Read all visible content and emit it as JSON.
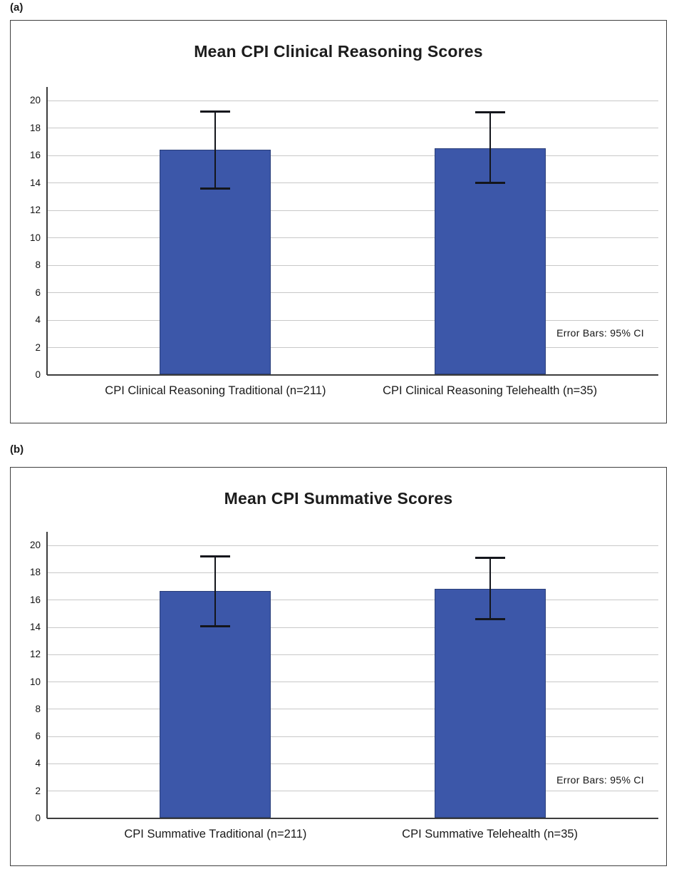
{
  "chart_data": [
    {
      "type": "bar",
      "panel_label": "(a)",
      "title": "Mean CPI Clinical Reasoning Scores",
      "annotation": "Error Bars: 95% CI",
      "categories": [
        "CPI Clinical Reasoning Traditional (n=211)",
        "CPI Clinical Reasoning Telehealth (n=35)"
      ],
      "values": [
        16.4,
        16.55
      ],
      "ci_low": [
        13.6,
        14.0
      ],
      "ci_high": [
        19.2,
        19.15
      ],
      "xlabel": "",
      "ylabel": "",
      "ylim": [
        0,
        21
      ],
      "yticks": [
        0,
        2,
        4,
        6,
        8,
        10,
        12,
        14,
        16,
        18,
        20
      ],
      "grid": true,
      "legend": "none",
      "bar_color": "#3c57a9",
      "bar_border_color": "#2a3f79"
    },
    {
      "type": "bar",
      "panel_label": "(b)",
      "title": "Mean CPI Summative Scores",
      "annotation": "Error Bars: 95% CI",
      "categories": [
        "CPI Summative Traditional (n=211)",
        "CPI Summative Telehealth (n=35)"
      ],
      "values": [
        16.65,
        16.8
      ],
      "ci_low": [
        14.1,
        14.6
      ],
      "ci_high": [
        19.2,
        19.1
      ],
      "xlabel": "",
      "ylabel": "",
      "ylim": [
        0,
        21
      ],
      "yticks": [
        0,
        2,
        4,
        6,
        8,
        10,
        12,
        14,
        16,
        18,
        20
      ],
      "grid": true,
      "legend": "none",
      "bar_color": "#3c57a9",
      "bar_border_color": "#2a3f79"
    }
  ],
  "colors": {
    "gridline": "#c8c8c8",
    "axis": "#3d3d3d",
    "panel_border": "#3f3f3f",
    "text": "#1a1a1a"
  }
}
